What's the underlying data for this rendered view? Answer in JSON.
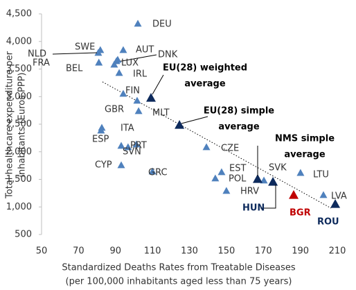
{
  "chart_data": {
    "type": "scatter",
    "xlabel": [
      "Standardized Deaths Rates from Treatable Diseases",
      "(per 100,000 inhabitants aged less than 75 years)"
    ],
    "ylabel": [
      "Total healthcare expenditure per",
      "inhabitants (Euros PPP)"
    ],
    "xlim": [
      50,
      210
    ],
    "xticks": [
      50,
      70,
      90,
      110,
      130,
      150,
      170,
      190,
      210
    ],
    "ylim": [
      500,
      4500
    ],
    "yticks": [
      500,
      {
        "value": 1000,
        "label": "1,000"
      },
      {
        "value": 1500,
        "label": "1,500"
      },
      {
        "value": 2000,
        "label": "2,000"
      },
      {
        "value": 2500,
        "label": "2,500"
      },
      {
        "value": 3000,
        "label": "3,000"
      },
      {
        "value": 3500,
        "label": "3,500"
      },
      {
        "value": 4000,
        "label": "4,000"
      },
      {
        "value": 4500,
        "label": "4,500"
      }
    ],
    "points": [
      {
        "name": [
          "DEU"
        ],
        "x": 102.1,
        "y": 4324,
        "color": "#4f81bd"
      },
      {
        "name": [
          "SWE"
        ],
        "x": 81.8,
        "y": 3846,
        "color": "#4f81bd"
      },
      {
        "name": [
          "NLD"
        ],
        "x": 80.7,
        "y": 3796,
        "color": "#4f81bd"
      },
      {
        "name": [
          "FRA"
        ],
        "x": 81,
        "y": 3619,
        "color": "#4f81bd"
      },
      {
        "name": [
          "AUT"
        ],
        "x": 94.2,
        "y": 3846,
        "color": "#4f81bd"
      },
      {
        "name": [
          "DNK"
        ],
        "x": 90.5,
        "y": 3645,
        "color": "#4f81bd"
      },
      {
        "name": [
          "LUX"
        ],
        "x": 91.2,
        "y": 3670,
        "color": "#4f81bd"
      },
      {
        "name": [
          "BEL"
        ],
        "x": 89.3,
        "y": 3582,
        "color": "#4f81bd"
      },
      {
        "name": [
          "IRL"
        ],
        "x": 92,
        "y": 3431,
        "color": "#4f81bd"
      },
      {
        "name": [
          "FIN"
        ],
        "x": 94.2,
        "y": 3053,
        "color": "#4f81bd"
      },
      {
        "name": [
          "GBR"
        ],
        "x": 102.5,
        "y": 2739,
        "color": "#4f81bd"
      },
      {
        "name": [
          "MLT"
        ],
        "x": 101.7,
        "y": 2928,
        "color": "#4f81bd"
      },
      {
        "name": [
          "EU(28) weighted",
          "average"
        ],
        "x": 109.2,
        "y": 2978,
        "color": "#0d2a5c"
      },
      {
        "name": [
          "ITA"
        ],
        "x": 82.6,
        "y": 2437,
        "color": "#4f81bd"
      },
      {
        "name": [
          ""
        ],
        "x": 82.2,
        "y": 2387,
        "color": "#4f81bd"
      },
      {
        "name": [
          "ESP"
        ],
        "x": 93.1,
        "y": 2110,
        "color": "#4f81bd"
      },
      {
        "name": [
          "PRT"
        ],
        "x": 101.3,
        "y": 2135,
        "color": "#4f81bd"
      },
      {
        "name": [
          "SVN"
        ],
        "x": 96.8,
        "y": 2085,
        "color": "#4f81bd"
      },
      {
        "name": [
          "CYP"
        ],
        "x": 93.1,
        "y": 1758,
        "color": "#4f81bd"
      },
      {
        "name": [
          "GRC"
        ],
        "x": 110,
        "y": 1645,
        "color": "#4f81bd"
      },
      {
        "name": [
          "EU(28) simple",
          "average"
        ],
        "x": 124.6,
        "y": 2487,
        "color": "#0d2a5c"
      },
      {
        "name": [
          "CZE"
        ],
        "x": 139.2,
        "y": 2085,
        "color": "#4f81bd"
      },
      {
        "name": [
          "EST"
        ],
        "x": 147.4,
        "y": 1632,
        "color": "#4f81bd"
      },
      {
        "name": [
          "POL"
        ],
        "x": 144,
        "y": 1519,
        "color": "#4f81bd"
      },
      {
        "name": [
          "HRV"
        ],
        "x": 150,
        "y": 1292,
        "color": "#4f81bd"
      },
      {
        "name": [
          "SVK"
        ],
        "x": 170.3,
        "y": 1481,
        "color": "#4f81bd"
      },
      {
        "name": [
          "NMS simple",
          "average"
        ],
        "x": 166.9,
        "y": 1506,
        "color": "#0d2a5c"
      },
      {
        "name": [
          "LTU"
        ],
        "x": 190.1,
        "y": 1619,
        "color": "#4f81bd"
      },
      {
        "name": [
          "HUN"
        ],
        "x": 175.2,
        "y": 1456,
        "color": "#0d2a5c"
      },
      {
        "name": [
          "BGR"
        ],
        "x": 186.4,
        "y": 1217,
        "color": "#c00000"
      },
      {
        "name": [
          "LVA"
        ],
        "x": 202.5,
        "y": 1217,
        "color": "#4f81bd"
      },
      {
        "name": [
          "ROU"
        ],
        "x": 208.9,
        "y": 1053,
        "color": "#0d2a5c"
      }
    ]
  }
}
